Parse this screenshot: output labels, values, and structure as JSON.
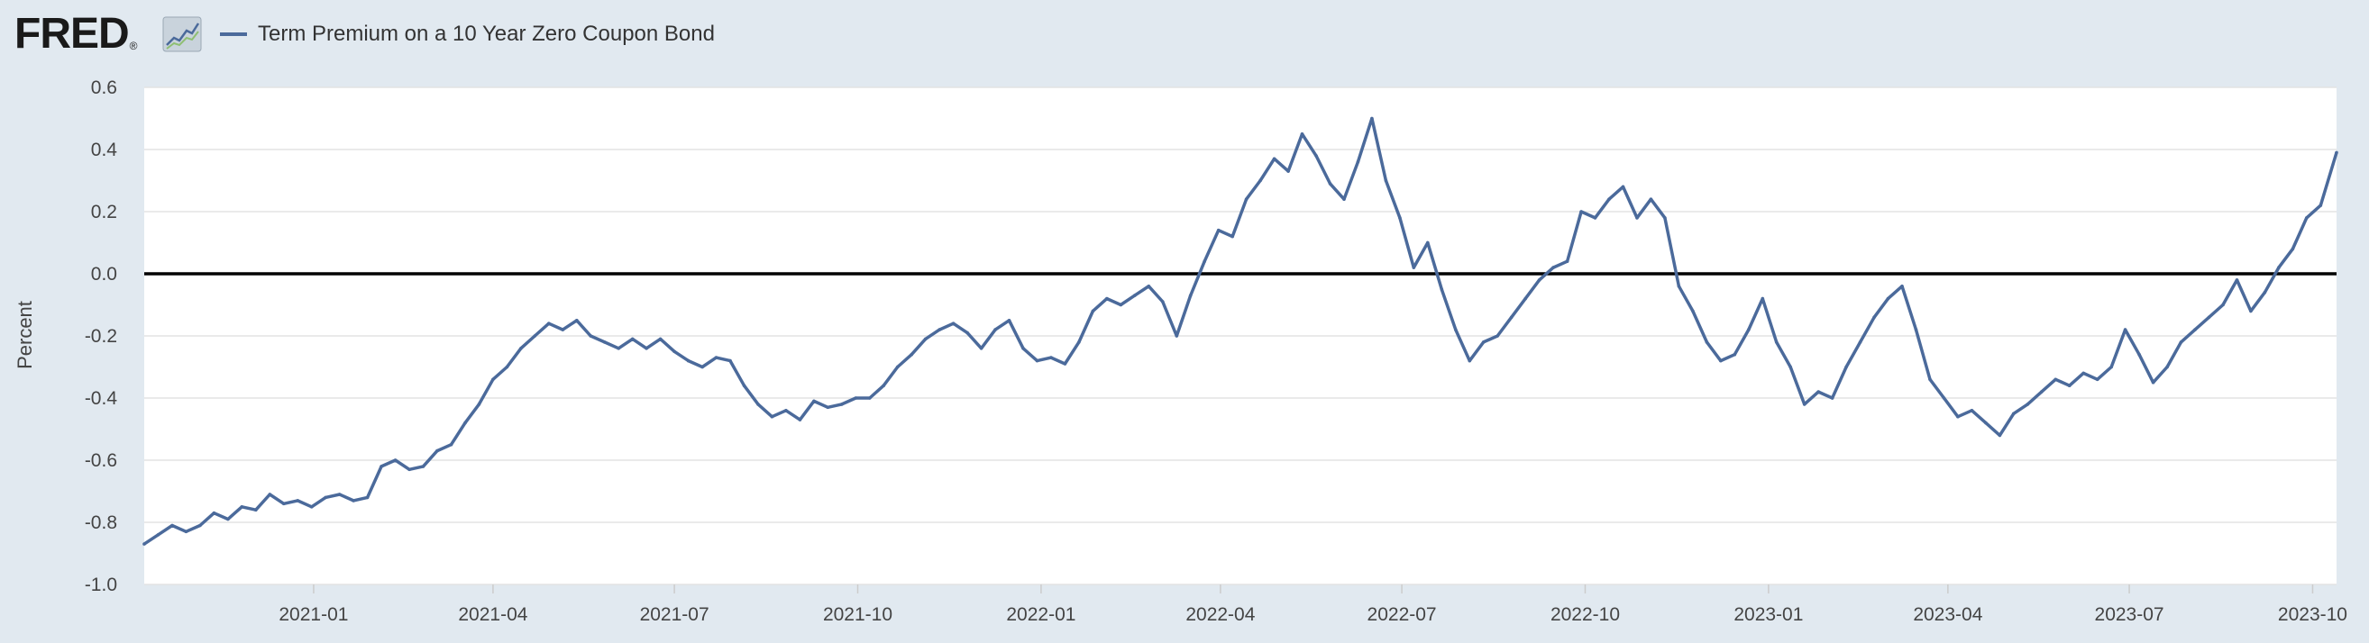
{
  "header": {
    "logo_text": "FRED",
    "logo_mark": "®",
    "logo_icon": "line-chart-icon"
  },
  "chart_data": {
    "type": "line",
    "title": "",
    "ylabel": "Percent",
    "xlabel": "",
    "ylim": [
      -1.0,
      0.6
    ],
    "xlim": [
      "2020-10-08",
      "2023-10-13"
    ],
    "grid": true,
    "legend_position": "top-left",
    "zero_line": true,
    "y_ticks": [
      {
        "value": 0.6,
        "label": "0.6"
      },
      {
        "value": 0.4,
        "label": "0.4"
      },
      {
        "value": 0.2,
        "label": "0.2"
      },
      {
        "value": 0.0,
        "label": "0.0"
      },
      {
        "value": -0.2,
        "label": "-0.2"
      },
      {
        "value": -0.4,
        "label": "-0.4"
      },
      {
        "value": -0.6,
        "label": "-0.6"
      },
      {
        "value": -0.8,
        "label": "-0.8"
      },
      {
        "value": -1.0,
        "label": "-1.0"
      }
    ],
    "x_ticks": [
      {
        "date": "2021-01-01",
        "label": "2021-01"
      },
      {
        "date": "2021-04-01",
        "label": "2021-04"
      },
      {
        "date": "2021-07-01",
        "label": "2021-07"
      },
      {
        "date": "2021-10-01",
        "label": "2021-10"
      },
      {
        "date": "2022-01-01",
        "label": "2022-01"
      },
      {
        "date": "2022-04-01",
        "label": "2022-04"
      },
      {
        "date": "2022-07-01",
        "label": "2022-07"
      },
      {
        "date": "2022-10-01",
        "label": "2022-10"
      },
      {
        "date": "2023-01-01",
        "label": "2023-01"
      },
      {
        "date": "2023-04-01",
        "label": "2023-04"
      },
      {
        "date": "2023-07-01",
        "label": "2023-07"
      },
      {
        "date": "2023-10-01",
        "label": "2023-10"
      }
    ],
    "series": [
      {
        "name": "Term Premium on a 10 Year Zero Coupon Bond",
        "color": "#4b6a9b",
        "points": [
          [
            "2020-10-08",
            -0.87
          ],
          [
            "2020-10-15",
            -0.84
          ],
          [
            "2020-10-22",
            -0.81
          ],
          [
            "2020-10-29",
            -0.83
          ],
          [
            "2020-11-05",
            -0.81
          ],
          [
            "2020-11-12",
            -0.77
          ],
          [
            "2020-11-19",
            -0.79
          ],
          [
            "2020-11-26",
            -0.75
          ],
          [
            "2020-12-03",
            -0.76
          ],
          [
            "2020-12-10",
            -0.71
          ],
          [
            "2020-12-17",
            -0.74
          ],
          [
            "2020-12-24",
            -0.73
          ],
          [
            "2020-12-31",
            -0.75
          ],
          [
            "2021-01-07",
            -0.72
          ],
          [
            "2021-01-14",
            -0.71
          ],
          [
            "2021-01-21",
            -0.73
          ],
          [
            "2021-01-28",
            -0.72
          ],
          [
            "2021-02-04",
            -0.62
          ],
          [
            "2021-02-11",
            -0.6
          ],
          [
            "2021-02-18",
            -0.63
          ],
          [
            "2021-02-25",
            -0.62
          ],
          [
            "2021-03-04",
            -0.57
          ],
          [
            "2021-03-11",
            -0.55
          ],
          [
            "2021-03-18",
            -0.48
          ],
          [
            "2021-03-25",
            -0.42
          ],
          [
            "2021-04-01",
            -0.34
          ],
          [
            "2021-04-08",
            -0.3
          ],
          [
            "2021-04-15",
            -0.24
          ],
          [
            "2021-04-22",
            -0.2
          ],
          [
            "2021-04-29",
            -0.16
          ],
          [
            "2021-05-06",
            -0.18
          ],
          [
            "2021-05-13",
            -0.15
          ],
          [
            "2021-05-20",
            -0.2
          ],
          [
            "2021-05-27",
            -0.22
          ],
          [
            "2021-06-03",
            -0.24
          ],
          [
            "2021-06-10",
            -0.21
          ],
          [
            "2021-06-17",
            -0.24
          ],
          [
            "2021-06-24",
            -0.21
          ],
          [
            "2021-07-01",
            -0.25
          ],
          [
            "2021-07-08",
            -0.28
          ],
          [
            "2021-07-15",
            -0.3
          ],
          [
            "2021-07-22",
            -0.27
          ],
          [
            "2021-07-29",
            -0.28
          ],
          [
            "2021-08-05",
            -0.36
          ],
          [
            "2021-08-12",
            -0.42
          ],
          [
            "2021-08-19",
            -0.46
          ],
          [
            "2021-08-26",
            -0.44
          ],
          [
            "2021-09-02",
            -0.47
          ],
          [
            "2021-09-09",
            -0.41
          ],
          [
            "2021-09-16",
            -0.43
          ],
          [
            "2021-09-23",
            -0.42
          ],
          [
            "2021-09-30",
            -0.4
          ],
          [
            "2021-10-07",
            -0.4
          ],
          [
            "2021-10-14",
            -0.36
          ],
          [
            "2021-10-21",
            -0.3
          ],
          [
            "2021-10-28",
            -0.26
          ],
          [
            "2021-11-04",
            -0.21
          ],
          [
            "2021-11-11",
            -0.18
          ],
          [
            "2021-11-18",
            -0.16
          ],
          [
            "2021-11-25",
            -0.19
          ],
          [
            "2021-12-02",
            -0.24
          ],
          [
            "2021-12-09",
            -0.18
          ],
          [
            "2021-12-16",
            -0.15
          ],
          [
            "2021-12-23",
            -0.24
          ],
          [
            "2021-12-30",
            -0.28
          ],
          [
            "2022-01-06",
            -0.27
          ],
          [
            "2022-01-13",
            -0.29
          ],
          [
            "2022-01-20",
            -0.22
          ],
          [
            "2022-01-27",
            -0.12
          ],
          [
            "2022-02-03",
            -0.08
          ],
          [
            "2022-02-10",
            -0.1
          ],
          [
            "2022-02-17",
            -0.07
          ],
          [
            "2022-02-24",
            -0.04
          ],
          [
            "2022-03-03",
            -0.09
          ],
          [
            "2022-03-10",
            -0.2
          ],
          [
            "2022-03-17",
            -0.07
          ],
          [
            "2022-03-24",
            0.04
          ],
          [
            "2022-03-31",
            0.14
          ],
          [
            "2022-04-07",
            0.12
          ],
          [
            "2022-04-14",
            0.24
          ],
          [
            "2022-04-21",
            0.3
          ],
          [
            "2022-04-28",
            0.37
          ],
          [
            "2022-05-05",
            0.33
          ],
          [
            "2022-05-12",
            0.45
          ],
          [
            "2022-05-19",
            0.38
          ],
          [
            "2022-05-26",
            0.29
          ],
          [
            "2022-06-02",
            0.24
          ],
          [
            "2022-06-09",
            0.36
          ],
          [
            "2022-06-16",
            0.5
          ],
          [
            "2022-06-23",
            0.3
          ],
          [
            "2022-06-30",
            0.18
          ],
          [
            "2022-07-07",
            0.02
          ],
          [
            "2022-07-14",
            0.1
          ],
          [
            "2022-07-21",
            -0.05
          ],
          [
            "2022-07-28",
            -0.18
          ],
          [
            "2022-08-04",
            -0.28
          ],
          [
            "2022-08-11",
            -0.22
          ],
          [
            "2022-08-18",
            -0.2
          ],
          [
            "2022-08-25",
            -0.14
          ],
          [
            "2022-09-01",
            -0.08
          ],
          [
            "2022-09-08",
            -0.02
          ],
          [
            "2022-09-15",
            0.02
          ],
          [
            "2022-09-22",
            0.04
          ],
          [
            "2022-09-29",
            0.2
          ],
          [
            "2022-10-06",
            0.18
          ],
          [
            "2022-10-13",
            0.24
          ],
          [
            "2022-10-20",
            0.28
          ],
          [
            "2022-10-27",
            0.18
          ],
          [
            "2022-11-03",
            0.24
          ],
          [
            "2022-11-10",
            0.18
          ],
          [
            "2022-11-17",
            -0.04
          ],
          [
            "2022-11-24",
            -0.12
          ],
          [
            "2022-12-01",
            -0.22
          ],
          [
            "2022-12-08",
            -0.28
          ],
          [
            "2022-12-15",
            -0.26
          ],
          [
            "2022-12-22",
            -0.18
          ],
          [
            "2022-12-29",
            -0.08
          ],
          [
            "2023-01-05",
            -0.22
          ],
          [
            "2023-01-12",
            -0.3
          ],
          [
            "2023-01-19",
            -0.42
          ],
          [
            "2023-01-26",
            -0.38
          ],
          [
            "2023-02-02",
            -0.4
          ],
          [
            "2023-02-09",
            -0.3
          ],
          [
            "2023-02-16",
            -0.22
          ],
          [
            "2023-02-23",
            -0.14
          ],
          [
            "2023-03-02",
            -0.08
          ],
          [
            "2023-03-09",
            -0.04
          ],
          [
            "2023-03-16",
            -0.18
          ],
          [
            "2023-03-23",
            -0.34
          ],
          [
            "2023-03-30",
            -0.4
          ],
          [
            "2023-04-06",
            -0.46
          ],
          [
            "2023-04-13",
            -0.44
          ],
          [
            "2023-04-20",
            -0.48
          ],
          [
            "2023-04-27",
            -0.52
          ],
          [
            "2023-05-04",
            -0.45
          ],
          [
            "2023-05-11",
            -0.42
          ],
          [
            "2023-05-18",
            -0.38
          ],
          [
            "2023-05-25",
            -0.34
          ],
          [
            "2023-06-01",
            -0.36
          ],
          [
            "2023-06-08",
            -0.32
          ],
          [
            "2023-06-15",
            -0.34
          ],
          [
            "2023-06-22",
            -0.3
          ],
          [
            "2023-06-29",
            -0.18
          ],
          [
            "2023-07-06",
            -0.26
          ],
          [
            "2023-07-13",
            -0.35
          ],
          [
            "2023-07-20",
            -0.3
          ],
          [
            "2023-07-27",
            -0.22
          ],
          [
            "2023-08-03",
            -0.18
          ],
          [
            "2023-08-10",
            -0.14
          ],
          [
            "2023-08-17",
            -0.1
          ],
          [
            "2023-08-24",
            -0.02
          ],
          [
            "2023-08-31",
            -0.12
          ],
          [
            "2023-09-07",
            -0.06
          ],
          [
            "2023-09-14",
            0.02
          ],
          [
            "2023-09-21",
            0.08
          ],
          [
            "2023-09-28",
            0.18
          ],
          [
            "2023-10-05",
            0.22
          ],
          [
            "2023-10-13",
            0.39
          ]
        ]
      }
    ]
  }
}
